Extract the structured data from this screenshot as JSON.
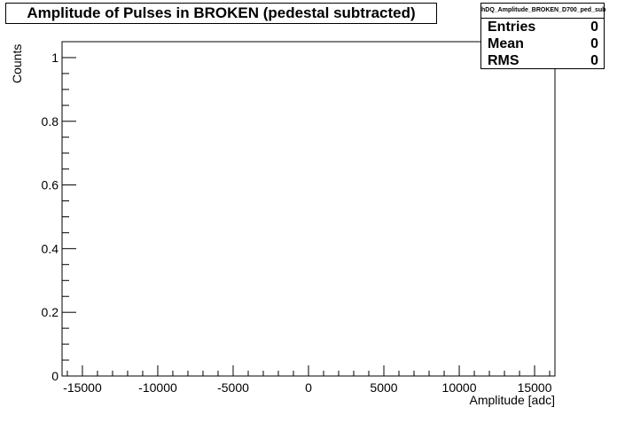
{
  "chart_data": {
    "type": "bar",
    "title": "Amplitude of Pulses in BROKEN (pedestal subtracted)",
    "xlabel": "Amplitude [adc]",
    "ylabel": "Counts",
    "xlim": [
      -16350,
      16350
    ],
    "ylim": [
      0,
      1.05
    ],
    "x_ticks": [
      -15000,
      -10000,
      -5000,
      0,
      5000,
      10000,
      15000
    ],
    "x_tick_labels": [
      "-15000",
      "-10000",
      "-5000",
      "0",
      "5000",
      "10000",
      "15000"
    ],
    "y_ticks": [
      0,
      0.2,
      0.4,
      0.6,
      0.8,
      1
    ],
    "y_tick_labels": [
      "0",
      "0.2",
      "0.4",
      "0.6",
      "0.8",
      "1"
    ],
    "x_minor_step": 1000,
    "y_minor_step": 0.05,
    "grid": false,
    "values": [],
    "legend_placement": "top-right",
    "stats": {
      "name": "hDQ_Amplitude_BROKEN_D700_ped_sub",
      "rows": [
        {
          "label": "Entries",
          "value": "0"
        },
        {
          "label": "Mean",
          "value": "0"
        },
        {
          "label": "RMS",
          "value": "0"
        }
      ]
    }
  }
}
